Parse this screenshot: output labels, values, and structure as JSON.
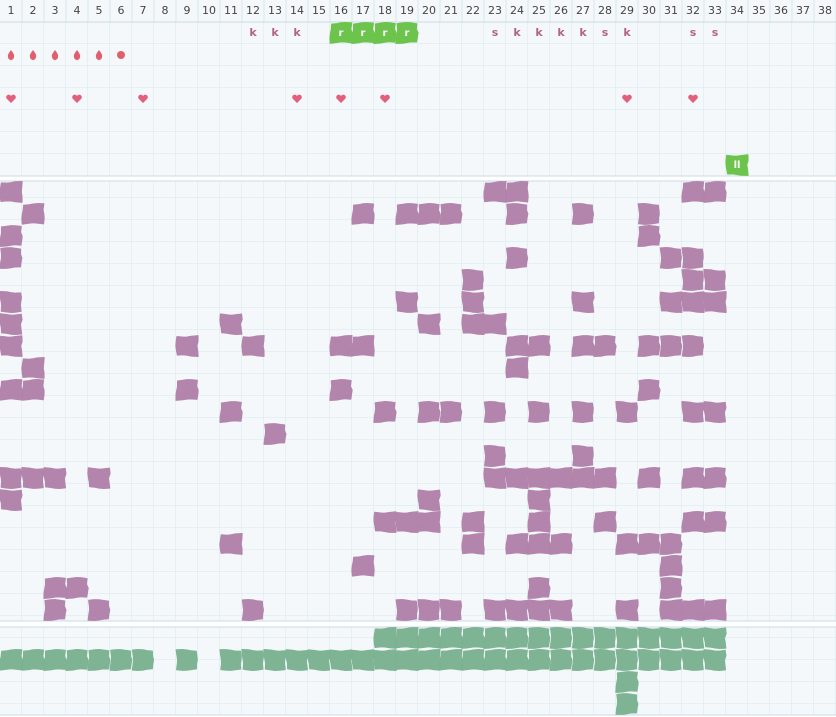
{
  "columns": [
    1,
    2,
    3,
    4,
    5,
    6,
    7,
    8,
    9,
    10,
    11,
    12,
    13,
    14,
    15,
    16,
    17,
    18,
    19,
    20,
    21,
    22,
    23,
    24,
    25,
    26,
    27,
    28,
    29,
    30,
    31,
    32,
    33,
    34,
    35,
    36,
    37,
    38
  ],
  "top_rows": [
    [
      {
        "col": 12,
        "text": "k"
      },
      {
        "col": 13,
        "text": "k"
      },
      {
        "col": 14,
        "text": "k"
      },
      {
        "col": 16,
        "text": "r",
        "badge": true
      },
      {
        "col": 17,
        "text": "r",
        "badge": true
      },
      {
        "col": 18,
        "text": "r",
        "badge": true
      },
      {
        "col": 19,
        "text": "r",
        "badge": true
      },
      {
        "col": 23,
        "text": "s"
      },
      {
        "col": 24,
        "text": "k"
      },
      {
        "col": 25,
        "text": "k"
      },
      {
        "col": 26,
        "text": "k"
      },
      {
        "col": 27,
        "text": "k"
      },
      {
        "col": 28,
        "text": "s"
      },
      {
        "col": 29,
        "text": "k"
      },
      {
        "col": 32,
        "text": "s"
      },
      {
        "col": 33,
        "text": "s"
      }
    ],
    [
      {
        "col": 1,
        "icon": "drop"
      },
      {
        "col": 2,
        "icon": "drop"
      },
      {
        "col": 3,
        "icon": "drop"
      },
      {
        "col": 4,
        "icon": "drop"
      },
      {
        "col": 5,
        "icon": "drop"
      },
      {
        "col": 6,
        "icon": "dot"
      }
    ],
    [],
    [
      {
        "col": 1,
        "icon": "heart"
      },
      {
        "col": 4,
        "icon": "heart"
      },
      {
        "col": 7,
        "icon": "heart"
      },
      {
        "col": 14,
        "icon": "heart"
      },
      {
        "col": 16,
        "icon": "heart"
      },
      {
        "col": 18,
        "icon": "heart"
      },
      {
        "col": 29,
        "icon": "heart"
      },
      {
        "col": 32,
        "icon": "heart"
      }
    ],
    [],
    [],
    [
      {
        "col": 34,
        "text": "ll",
        "badge": true
      }
    ]
  ],
  "middle_rows": [
    [
      1,
      23,
      24,
      32,
      33
    ],
    [
      2,
      17,
      19,
      20,
      21,
      24,
      27,
      30
    ],
    [
      1,
      30
    ],
    [
      1,
      24,
      31,
      32
    ],
    [
      22,
      32,
      33
    ],
    [
      1,
      19,
      22,
      27,
      31,
      32,
      33
    ],
    [
      1,
      11,
      20,
      22,
      23
    ],
    [
      1,
      9,
      12,
      16,
      17,
      24,
      25,
      27,
      28,
      30,
      31,
      32
    ],
    [
      2,
      24
    ],
    [
      1,
      2,
      9,
      16,
      30
    ],
    [
      11,
      18,
      20,
      21,
      23,
      25,
      27,
      29,
      32,
      33
    ],
    [
      13
    ],
    [
      23,
      27
    ],
    [
      1,
      2,
      3,
      5,
      23,
      24,
      25,
      26,
      27,
      28,
      30,
      32,
      33
    ],
    [
      1,
      20,
      25
    ],
    [
      18,
      19,
      20,
      22,
      25,
      28,
      32,
      33
    ],
    [
      11,
      22,
      24,
      25,
      26,
      29,
      30,
      31
    ],
    [
      17,
      31
    ],
    [
      3,
      4,
      25,
      31
    ],
    [
      3,
      5,
      12,
      19,
      20,
      21,
      23,
      24,
      25,
      26,
      29,
      31,
      32,
      33
    ]
  ],
  "bottom_rows": [
    [
      18,
      19,
      20,
      21,
      22,
      23,
      24,
      25,
      26,
      27,
      28,
      29,
      30,
      31,
      32,
      33
    ],
    [
      1,
      2,
      3,
      4,
      5,
      6,
      7,
      9,
      11,
      12,
      13,
      14,
      15,
      16,
      17,
      18,
      19,
      20,
      21,
      22,
      23,
      24,
      25,
      26,
      27,
      28,
      29,
      30,
      31,
      32,
      33
    ],
    [
      29
    ],
    [
      29
    ]
  ]
}
